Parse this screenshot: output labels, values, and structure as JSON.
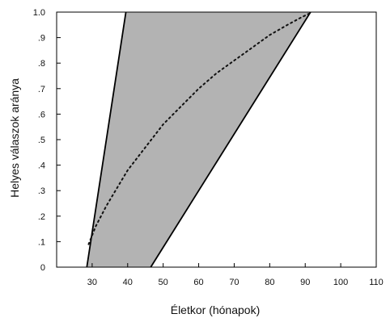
{
  "chart_data": {
    "type": "area",
    "xlabel": "Életkor (hónapok)",
    "ylabel": "Helyes válaszok aránya",
    "xlim": [
      20,
      110
    ],
    "ylim": [
      0,
      1.0
    ],
    "x_ticks": [
      30,
      40,
      50,
      60,
      70,
      80,
      90,
      100,
      110
    ],
    "y_ticks": [
      0,
      0.1,
      0.2,
      0.3,
      0.4,
      0.5,
      0.6,
      0.7,
      0.8,
      0.9,
      1.0
    ],
    "y_tick_labels": [
      "0",
      ".1",
      ".2",
      ".3",
      ".4",
      ".5",
      ".6",
      ".7",
      ".8",
      ".9",
      "1.0"
    ],
    "band": {
      "upper_line": [
        {
          "x": 28.5,
          "y": 0
        },
        {
          "x": 39.5,
          "y": 1.0
        }
      ],
      "lower_line": [
        {
          "x": 46.5,
          "y": 0
        },
        {
          "x": 91.5,
          "y": 1.0
        }
      ],
      "fill_color": "#b3b3b3",
      "line_color": "#000000"
    },
    "curve": {
      "style": "dotted",
      "points": [
        {
          "x": 29,
          "y": 0.09
        },
        {
          "x": 31,
          "y": 0.16
        },
        {
          "x": 34,
          "y": 0.24
        },
        {
          "x": 37,
          "y": 0.31
        },
        {
          "x": 40,
          "y": 0.38
        },
        {
          "x": 45,
          "y": 0.47
        },
        {
          "x": 50,
          "y": 0.56
        },
        {
          "x": 55,
          "y": 0.63
        },
        {
          "x": 60,
          "y": 0.7
        },
        {
          "x": 65,
          "y": 0.76
        },
        {
          "x": 70,
          "y": 0.81
        },
        {
          "x": 75,
          "y": 0.86
        },
        {
          "x": 80,
          "y": 0.91
        },
        {
          "x": 85,
          "y": 0.95
        },
        {
          "x": 89,
          "y": 0.98
        },
        {
          "x": 92,
          "y": 1.0
        }
      ]
    },
    "grid": false
  }
}
